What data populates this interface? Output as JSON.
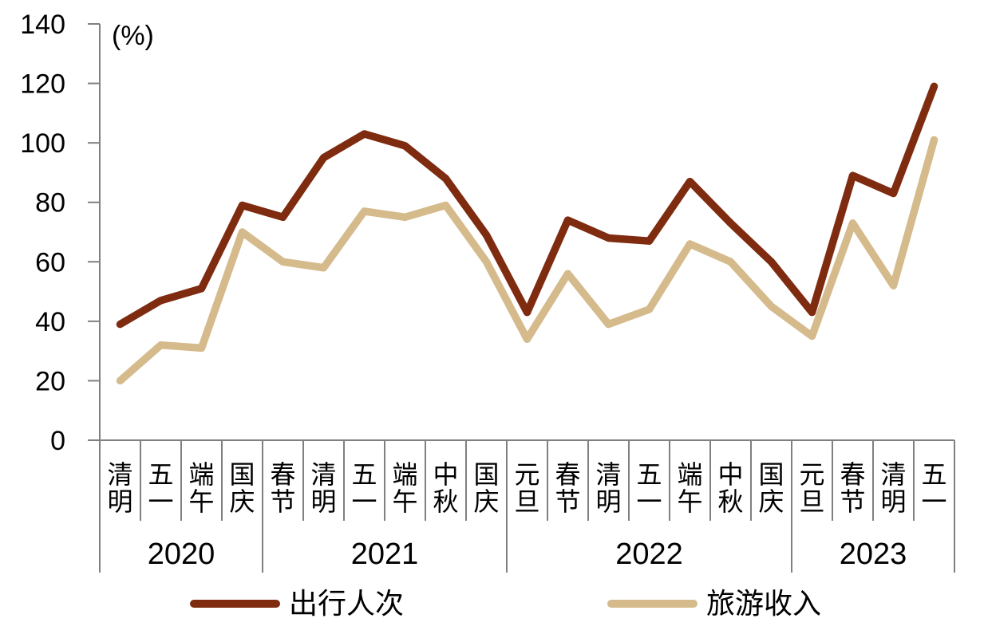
{
  "page": {
    "background": "#ffffff"
  },
  "chart_data": {
    "type": "line",
    "title": "",
    "unit_label": "(%)",
    "xlabel": "",
    "ylabel": "",
    "ylim": [
      0,
      140
    ],
    "y_ticks": [
      0,
      20,
      40,
      60,
      80,
      100,
      120,
      140
    ],
    "grid": false,
    "legend_position": "bottom",
    "axis_color": "#808080",
    "text_color": "#000000",
    "x_groups": [
      {
        "year": "2020",
        "holidays": [
          "清明",
          "五一",
          "端午",
          "国庆"
        ]
      },
      {
        "year": "2021",
        "holidays": [
          "春节",
          "清明",
          "五一",
          "端午",
          "中秋",
          "国庆"
        ]
      },
      {
        "year": "2022",
        "holidays": [
          "元旦",
          "春节",
          "清明",
          "五一",
          "端午",
          "中秋",
          "国庆"
        ]
      },
      {
        "year": "2023",
        "holidays": [
          "元旦",
          "春节",
          "清明",
          "五一"
        ]
      }
    ],
    "series": [
      {
        "name": "出行人次",
        "color": "#7E2B10",
        "values": [
          39,
          47,
          51,
          79,
          75,
          95,
          103,
          99,
          88,
          69,
          43,
          74,
          68,
          67,
          87,
          73,
          60,
          43,
          89,
          83,
          119
        ]
      },
      {
        "name": "旅游收入",
        "color": "#D5BA8C",
        "values": [
          20,
          32,
          31,
          70,
          60,
          58,
          77,
          75,
          79,
          60,
          34,
          56,
          39,
          44,
          66,
          60,
          45,
          35,
          73,
          52,
          101
        ]
      }
    ]
  }
}
